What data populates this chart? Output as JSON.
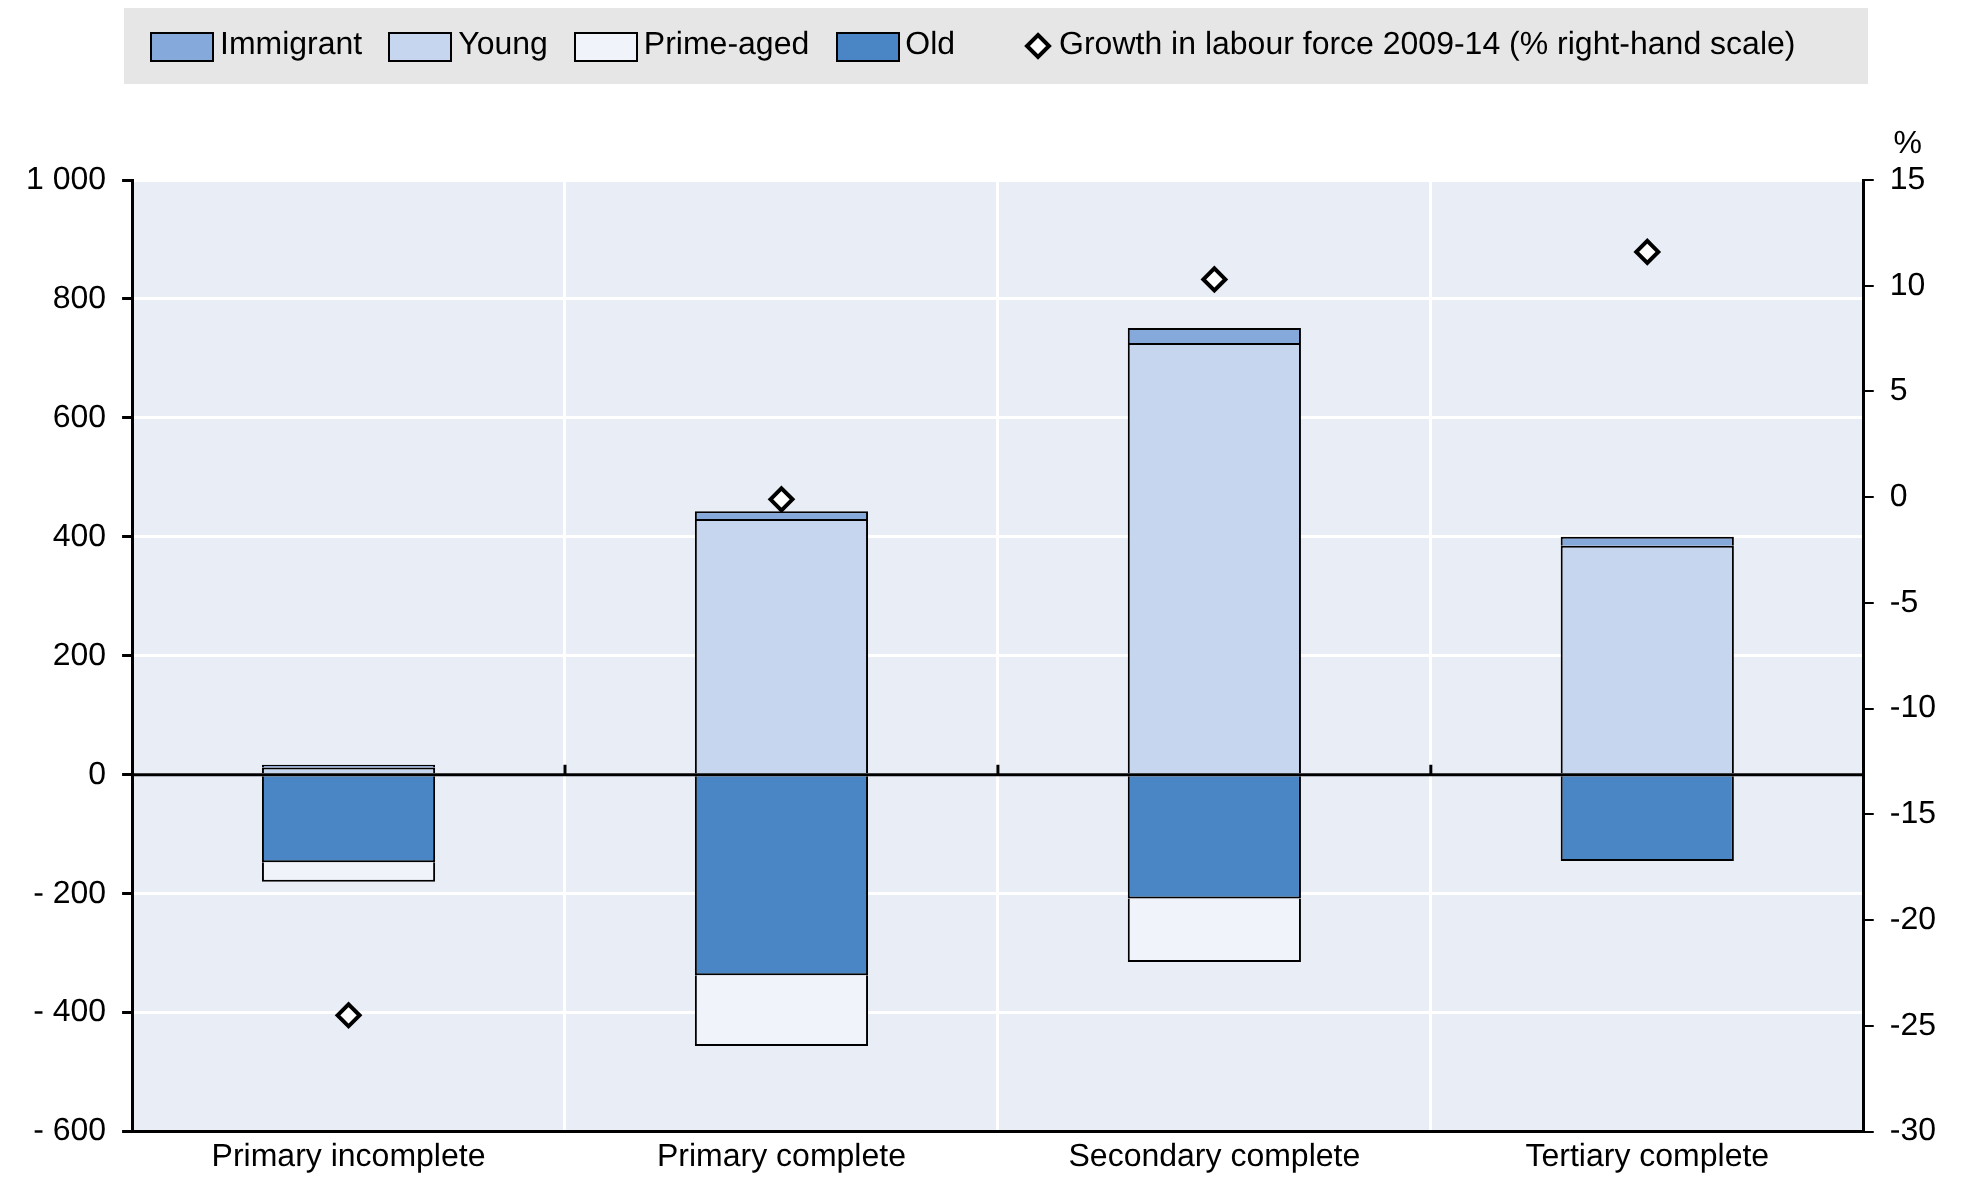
{
  "chart_data": {
    "type": "bar",
    "stacked": true,
    "categories": [
      "Primary incomplete",
      "Primary complete",
      "Secondary complete",
      "Tertiary complete"
    ],
    "series": [
      {
        "name": "Old",
        "color": "#4a86c5",
        "values": [
          -147,
          -337,
          -208,
          -145
        ]
      },
      {
        "name": "Prime-aged",
        "color": "#f0f4fa",
        "values": [
          -33,
          -119,
          -107,
          null
        ]
      },
      {
        "name": "Young",
        "color": "#c6d6ee",
        "values": [
          12,
          430,
          726,
          385
        ]
      },
      {
        "name": "Immigrant",
        "color": "#86a9dc",
        "values": [
          5,
          13,
          25,
          15
        ]
      },
      {
        "name": "Growth in labour force 2009-14 (% right-hand scale)",
        "type": "scatter",
        "axis": "y2",
        "marker": "diamond",
        "color": "#000000",
        "values": [
          -24.5,
          -0.1,
          10.3,
          11.6
        ]
      }
    ],
    "ylim": [
      -600,
      1000
    ],
    "yticks": [
      {
        "value": -600,
        "label": "- 600"
      },
      {
        "value": -400,
        "label": "- 400"
      },
      {
        "value": -200,
        "label": "- 200"
      },
      0,
      200,
      400,
      600,
      800,
      {
        "value": 1000,
        "label": "1 000"
      }
    ],
    "y2lim": [
      -30,
      15
    ],
    "y2ticks": [
      -30,
      -25,
      -20,
      -15,
      -10,
      -5,
      0,
      5,
      10,
      15
    ],
    "y2label": "%",
    "grid": true,
    "legend": "top"
  }
}
